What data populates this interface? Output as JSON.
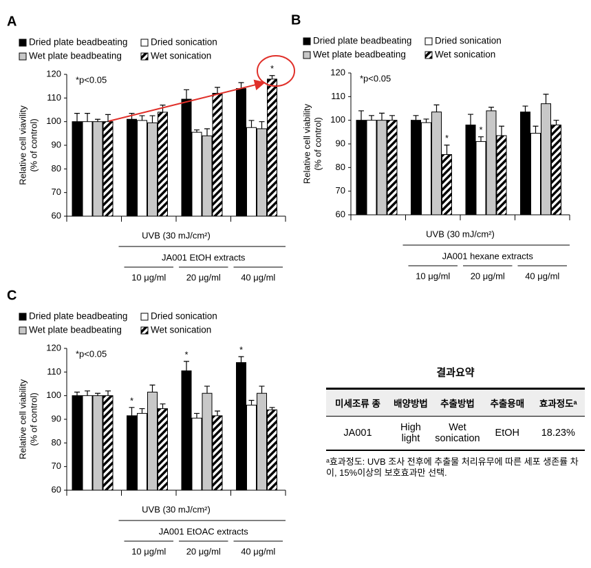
{
  "chart_data": [
    {
      "type": "bar",
      "panel": "A",
      "ylabel": [
        "Relative cell viavility",
        "(% of control)"
      ],
      "annotation": "*p<0.05",
      "ylim": [
        60,
        120
      ],
      "yticks": [
        60,
        70,
        80,
        90,
        100,
        110,
        120
      ],
      "grid": false,
      "treatment": "UVB (30 mJ/cm²)",
      "extract": "JA001 EtOH extracts",
      "categories": [
        null,
        "10 μg/ml",
        "20 μg/ml",
        "40 μg/ml"
      ],
      "series": [
        {
          "name": "Dried plate beadbeating",
          "color": "#000000",
          "values": [
            100,
            101,
            109.5,
            114
          ],
          "errors": [
            3.5,
            2.5,
            4,
            2.5
          ],
          "significance": [
            null,
            null,
            null,
            null
          ]
        },
        {
          "name": "Dried sonication",
          "color": "#ffffff",
          "values": [
            100,
            100.5,
            95.5,
            97.5
          ],
          "errors": [
            3.5,
            2,
            1,
            3
          ],
          "significance": [
            null,
            null,
            null,
            null
          ]
        },
        {
          "name": "Wet plate beadbeating",
          "color": "#c8c8c8",
          "values": [
            100,
            99.5,
            94,
            97
          ],
          "errors": [
            1,
            3,
            3,
            3
          ],
          "significance": [
            null,
            null,
            null,
            null
          ]
        },
        {
          "name": "Wet sonication",
          "color": "#000000",
          "hatch": true,
          "values": [
            100,
            104,
            112,
            118
          ],
          "errors": [
            3,
            3,
            2.5,
            1.5
          ],
          "significance": [
            null,
            null,
            null,
            "*"
          ]
        }
      ]
    },
    {
      "type": "bar",
      "panel": "B",
      "ylabel": [
        "Relative cell viability",
        "(% of control)"
      ],
      "annotation": "*p<0.05",
      "ylim": [
        60,
        120
      ],
      "yticks": [
        60,
        70,
        80,
        90,
        100,
        110,
        120
      ],
      "grid": false,
      "treatment": "UVB (30 mJ/cm²)",
      "extract": "JA001 hexane extracts",
      "categories": [
        null,
        "10 μg/ml",
        "20 μg/ml",
        "40 μg/ml"
      ],
      "series": [
        {
          "name": "Dried plate beadbeating",
          "color": "#000000",
          "values": [
            100,
            100,
            98,
            103.5
          ],
          "errors": [
            4,
            2,
            4.5,
            2.5
          ],
          "significance": [
            null,
            null,
            null,
            null
          ]
        },
        {
          "name": "Dried sonication",
          "color": "#ffffff",
          "values": [
            100,
            99,
            91,
            94.5
          ],
          "errors": [
            2,
            1.5,
            2,
            3
          ],
          "significance": [
            null,
            null,
            "*",
            null
          ]
        },
        {
          "name": "Wet plate beadbeating",
          "color": "#c8c8c8",
          "values": [
            100,
            103.5,
            104,
            107
          ],
          "errors": [
            3,
            3,
            1.5,
            4
          ],
          "significance": [
            null,
            null,
            null,
            null
          ]
        },
        {
          "name": "Wet sonication",
          "color": "#000000",
          "hatch": true,
          "values": [
            100,
            85.5,
            93.5,
            98
          ],
          "errors": [
            2,
            4,
            4,
            2
          ],
          "significance": [
            null,
            "*",
            null,
            null
          ]
        }
      ]
    },
    {
      "type": "bar",
      "panel": "C",
      "ylabel": [
        "Relative cell viability",
        "(% of control)"
      ],
      "annotation": "*p<0.05",
      "ylim": [
        60,
        120
      ],
      "yticks": [
        60,
        70,
        80,
        90,
        100,
        110,
        120
      ],
      "grid": false,
      "treatment": "UVB (30 mJ/cm²)",
      "extract": "JA001 EtOAC extracts",
      "categories": [
        null,
        "10 μg/ml",
        "20 μg/ml",
        "40 μg/ml"
      ],
      "series": [
        {
          "name": "Dried plate beadbeating",
          "color": "#000000",
          "values": [
            100,
            91.5,
            110.5,
            114
          ],
          "errors": [
            1.5,
            3.5,
            4,
            2.5
          ],
          "significance": [
            null,
            "*",
            "*",
            "*"
          ]
        },
        {
          "name": "Dried sonication",
          "color": "#ffffff",
          "values": [
            100,
            92.5,
            90.5,
            96
          ],
          "errors": [
            2,
            2,
            2,
            2
          ],
          "significance": [
            null,
            null,
            null,
            null
          ]
        },
        {
          "name": "Wet plate beadbeating",
          "color": "#c8c8c8",
          "values": [
            100,
            101.5,
            101,
            101
          ],
          "errors": [
            1,
            3,
            3,
            3
          ],
          "significance": [
            null,
            null,
            null,
            null
          ]
        },
        {
          "name": "Wet sonication",
          "color": "#000000",
          "hatch": true,
          "values": [
            100,
            94.5,
            91.5,
            94
          ],
          "errors": [
            2,
            2,
            2,
            1
          ],
          "significance": [
            null,
            null,
            null,
            null
          ]
        }
      ]
    }
  ],
  "table": {
    "title": "결과요약",
    "header": [
      "미세조류 종",
      "배양방법",
      "추출방법",
      "추출용매",
      "효과정도ᵃ"
    ],
    "rows": [
      [
        "JA001",
        "High light",
        "Wet sonication",
        "EtOH",
        "18.23%"
      ]
    ],
    "footnote": "ᵃ효과정도: UVB 조사 전후에 추출물 처리유무에 따른 세포 생존률 차이, 15%이상의 보호효과만 선택."
  }
}
